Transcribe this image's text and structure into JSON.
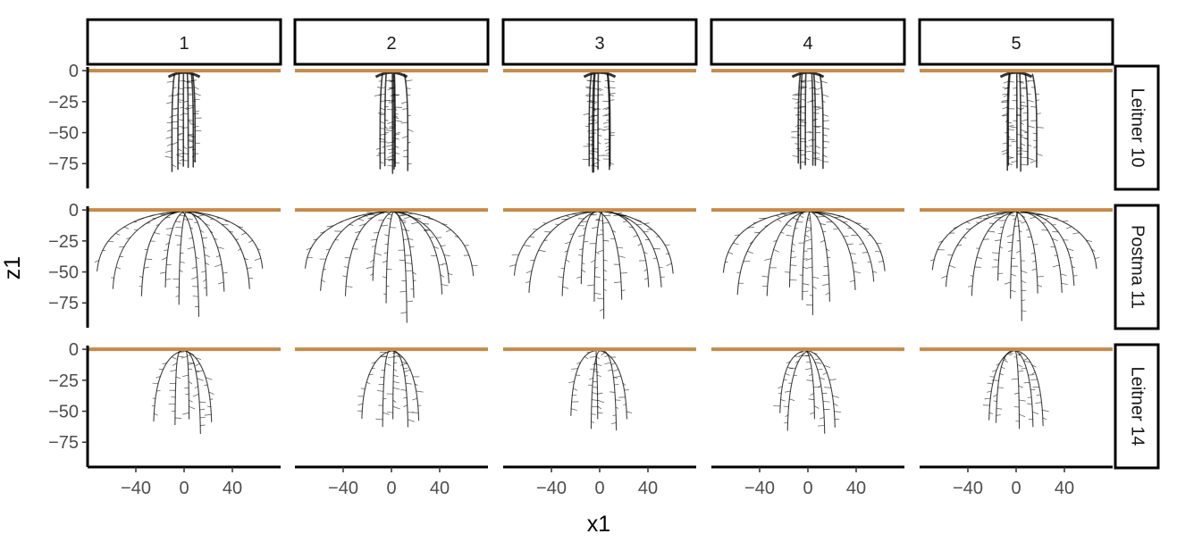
{
  "chart_data": {
    "type": "line",
    "description_type": "faceted root-system architecture plots",
    "xlabel": "x1",
    "ylabel": "z1",
    "xlim": [
      -80,
      80
    ],
    "ylim": [
      -95,
      3
    ],
    "x_ticks": [
      -40,
      0,
      40
    ],
    "x_tick_labels": [
      "-40",
      "0",
      "40"
    ],
    "y_ticks": [
      0,
      -25,
      -50,
      -75
    ],
    "y_tick_labels": [
      "0",
      "-25",
      "-50",
      "-75"
    ],
    "grid": false,
    "column_facets": [
      "1",
      "2",
      "3",
      "4",
      "5"
    ],
    "row_facets": [
      "Leitner 10",
      "Postma 11",
      "Leitner 14"
    ],
    "soil_surface": {
      "z": 0,
      "color": "#C68B47"
    },
    "root_color": "#000000",
    "rows": [
      {
        "label": "Leitner 10",
        "shape": "narrow dense",
        "half_width": 13,
        "depth": -80,
        "roots": [
          {
            "x_end": -12,
            "z_end": -78
          },
          {
            "x_end": -7,
            "z_end": -80
          },
          {
            "x_end": -2,
            "z_end": -79
          },
          {
            "x_end": 3,
            "z_end": -80
          },
          {
            "x_end": 8,
            "z_end": -78
          },
          {
            "x_end": 13,
            "z_end": -77
          }
        ]
      },
      {
        "label": "Postma 11",
        "shape": "wide spreading",
        "half_width": 70,
        "depth": -88,
        "roots": [
          {
            "x_end": -68,
            "z_end": -50
          },
          {
            "x_end": -55,
            "z_end": -65
          },
          {
            "x_end": -35,
            "z_end": -70
          },
          {
            "x_end": -18,
            "z_end": -60
          },
          {
            "x_end": -5,
            "z_end": -75
          },
          {
            "x_end": 8,
            "z_end": -88
          },
          {
            "x_end": 22,
            "z_end": -70
          },
          {
            "x_end": 38,
            "z_end": -65
          },
          {
            "x_end": 52,
            "z_end": -60
          },
          {
            "x_end": 65,
            "z_end": -50
          }
        ]
      },
      {
        "label": "Leitner 14",
        "shape": "asymmetric arch",
        "half_width": 40,
        "depth": -70,
        "roots": [
          {
            "x_end": -25,
            "z_end": -55
          },
          {
            "x_end": -12,
            "z_end": -62
          },
          {
            "x_end": 2,
            "z_end": -60
          },
          {
            "x_end": 15,
            "z_end": -66
          },
          {
            "x_end": 22,
            "z_end": -60
          }
        ]
      }
    ]
  }
}
